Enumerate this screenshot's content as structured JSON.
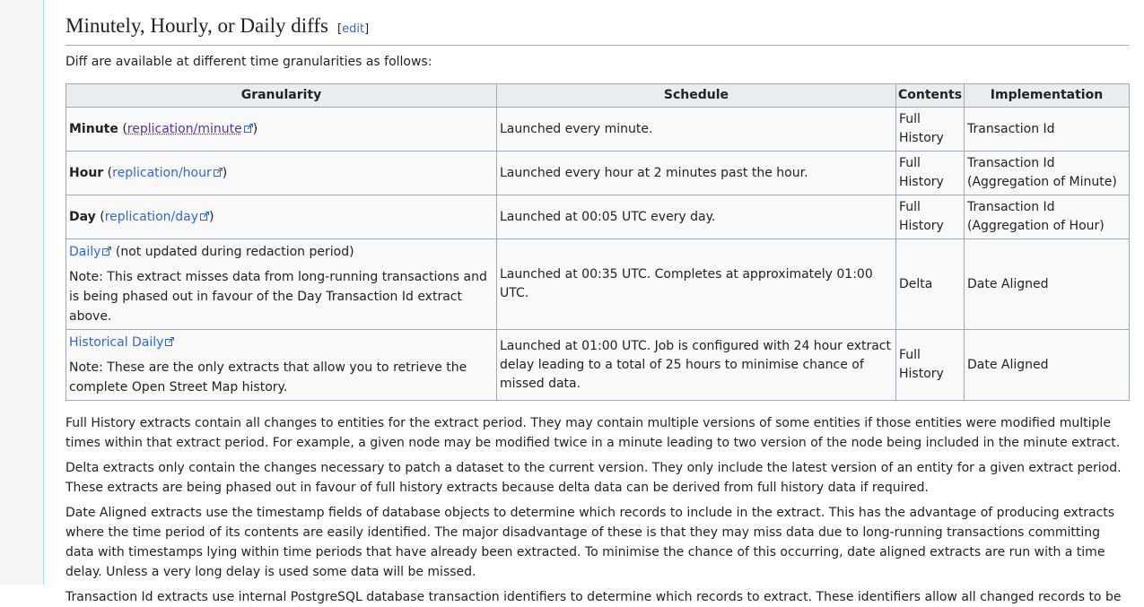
{
  "heading": {
    "title": "Minutely, Hourly, or Daily diffs",
    "edit_open": "[",
    "edit": "edit",
    "edit_close": "]"
  },
  "intro": "Diff are available at different time granularities as follows:",
  "table": {
    "headers": [
      "Granularity",
      "Schedule",
      "Contents",
      "Implementation"
    ],
    "rows": [
      {
        "granularity": {
          "bold": "Minute",
          "open": "(",
          "link": "replication/minute",
          "close": ")"
        },
        "schedule": "Launched every minute.",
        "contents": "Full History",
        "implementation": "Transaction Id"
      },
      {
        "granularity": {
          "bold": "Hour",
          "open": "(",
          "link": "replication/hour",
          "close": ")"
        },
        "schedule": "Launched every hour at 2 minutes past the hour.",
        "contents": "Full History",
        "implementation": "Transaction Id (Aggregation of Minute)"
      },
      {
        "granularity": {
          "bold": "Day",
          "open": "(",
          "link": "replication/day",
          "close": ")"
        },
        "schedule": "Launched at 00:05 UTC every day.",
        "contents": "Full History",
        "implementation": "Transaction Id (Aggregation of Hour)"
      },
      {
        "granularity": {
          "link": "Daily",
          "text": "(not updated during redaction period)",
          "note": "Note: This extract misses data from long-running transactions and is being phased out in favour of the Day Transaction Id extract above."
        },
        "schedule": "Launched at 00:35 UTC. Completes at approximately 01:00 UTC.",
        "contents": "Delta",
        "implementation": "Date Aligned"
      },
      {
        "granularity": {
          "link": "Historical Daily",
          "note": "Note: These are the only extracts that allow you to retrieve the complete Open Street Map history."
        },
        "schedule": "Launched at 01:00 UTC. Job is configured with 24 hour extract delay leading to a total of 25 hours to minimise chance of missed data.",
        "contents": "Full History",
        "implementation": "Date Aligned"
      }
    ]
  },
  "paragraphs": [
    "Full History extracts contain all changes to entities for the extract period. They may contain multiple versions of some entities if those entities were modified multiple times within that extract period. For example, a given node may be modified twice in a minute leading to two version of the node being included in the minute extract.",
    "Delta extracts only contain the changes necessary to patch a dataset to the current version. They only include the latest version of an entity for a given extract period. These extracts are being phased out in favour of full history extracts because delta data can be derived from full history data if required.",
    "Date Aligned extracts use the timestamp fields of database objects to determine which records to include in the extract. This has the advantage of producing extracts where the time period of its contents are easily identified. The major disadvantage of these is that they may miss data due to long-running transactions committing data with timestamps lying within time periods that have already been extracted. To minimise the chance of this occurring, date aligned extracts are run with a time delay. Unless a very long delay is used some data will be missed.",
    "Transaction Id extracts use internal PostgreSQL database transaction identifiers to determine which records to extract. These identifiers allow all changed records to be"
  ]
}
